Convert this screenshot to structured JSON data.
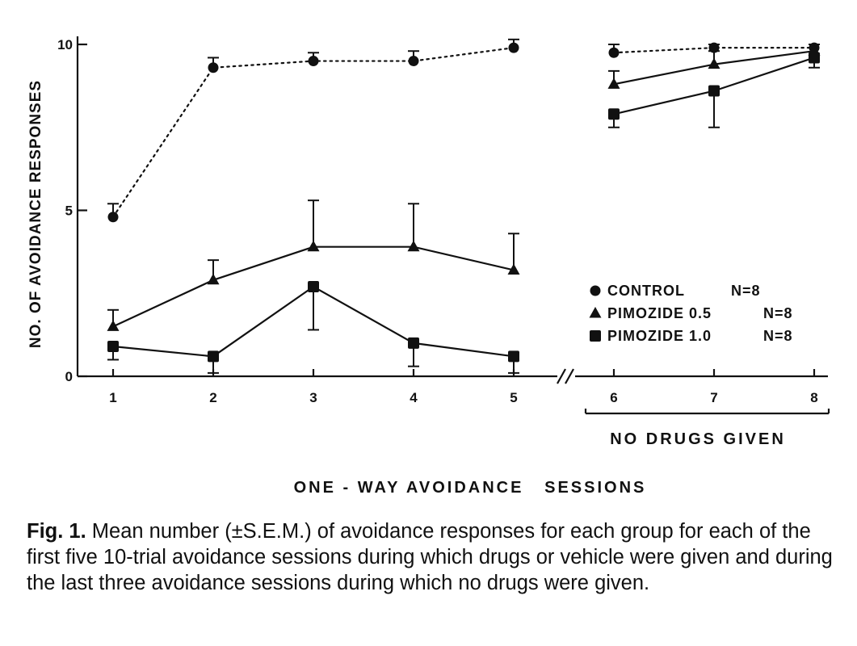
{
  "chart_data": {
    "type": "line",
    "ylabel": "NO. OF AVOIDANCE RESPONSES",
    "xlabel": "ONE - WAY AVOIDANCE   SESSIONS",
    "ylim": [
      0,
      10
    ],
    "yticks": [
      "0",
      "5",
      "10"
    ],
    "x": [
      1,
      2,
      3,
      4,
      5,
      6,
      7,
      8
    ],
    "xticks": [
      "1",
      "2",
      "3",
      "4",
      "5",
      "6",
      "7",
      "8"
    ],
    "axis_break_between": [
      5,
      6
    ],
    "bracket_label": "NO DRUGS GIVEN",
    "bracket_range": [
      6,
      8
    ],
    "grid": false,
    "legend_position": "right",
    "series": [
      {
        "name": "CONTROL",
        "n_label": "N=8",
        "marker": "circle",
        "line_style": "dotted",
        "values": [
          4.8,
          9.3,
          9.5,
          9.5,
          9.9,
          9.75,
          9.9,
          9.9
        ],
        "errors": [
          0.4,
          0.3,
          0.25,
          0.3,
          0.25,
          0.25,
          0.1,
          0.1
        ]
      },
      {
        "name": "PIMOZIDE 0.5",
        "n_label": "N=8",
        "marker": "triangle",
        "line_style": "solid",
        "values": [
          1.5,
          2.9,
          3.9,
          3.9,
          3.2,
          8.8,
          9.4,
          9.8
        ],
        "errors": [
          0.5,
          0.6,
          1.4,
          1.3,
          1.1,
          0.4,
          0.4,
          0.2
        ]
      },
      {
        "name": "PIMOZIDE 1.0",
        "n_label": "N=8",
        "marker": "square",
        "line_style": "solid",
        "values": [
          0.9,
          0.6,
          2.7,
          1.0,
          0.6,
          7.9,
          8.6,
          9.6
        ],
        "errors": [
          0.4,
          0.5,
          1.3,
          0.7,
          0.5,
          0.4,
          1.1,
          0.3
        ]
      }
    ]
  },
  "caption": {
    "lead": "Fig. 1.",
    "text": " Mean number (±S.E.M.) of avoidance responses for each group for each of the first five 10-trial avoidance sessions during which drugs or vehicle were given and during the last three avoidance sessions during which no drugs were given."
  }
}
